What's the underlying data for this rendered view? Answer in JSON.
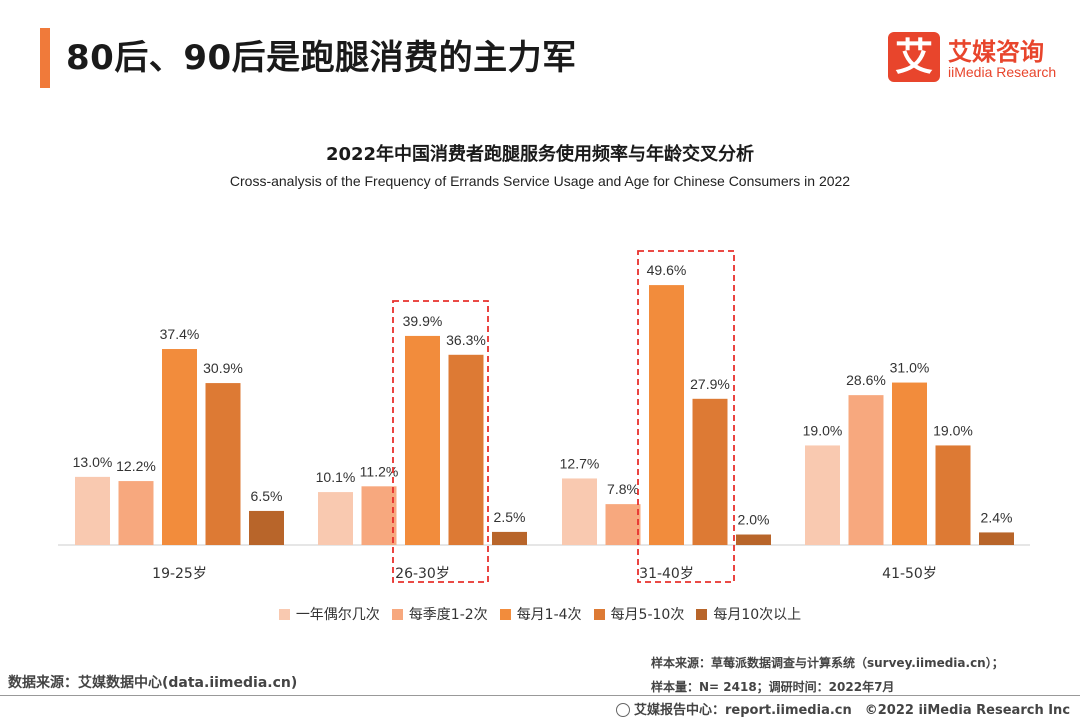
{
  "header": {
    "title": "80后、90后是跑腿消费的主力军"
  },
  "logo": {
    "mark": "艾",
    "name_cn": "艾媒咨询",
    "name_en": "iiMedia Research"
  },
  "chart_data": {
    "type": "bar",
    "title": "2022年中国消费者跑腿服务使用频率与年龄交叉分析",
    "subtitle": "Cross-analysis of the Frequency of Errands Service Usage and Age for Chinese Consumers in 2022",
    "categories": [
      "19-25岁",
      "26-30岁",
      "31-40岁",
      "41-50岁"
    ],
    "series": [
      {
        "name": "一年偶尔几次",
        "color": "#f9c9b0",
        "values": [
          13.0,
          10.1,
          12.7,
          19.0
        ]
      },
      {
        "name": "每季度1-2次",
        "color": "#f7a87e",
        "values": [
          12.2,
          11.2,
          7.8,
          28.6
        ]
      },
      {
        "name": "每月1-4次",
        "color": "#f28c3c",
        "values": [
          37.4,
          39.9,
          49.6,
          31.0
        ]
      },
      {
        "name": "每月5-10次",
        "color": "#dd7a34",
        "values": [
          30.9,
          36.3,
          27.9,
          19.0
        ]
      },
      {
        "name": "每月10次以上",
        "color": "#b8652a",
        "values": [
          6.5,
          2.5,
          2.0,
          2.4
        ]
      }
    ],
    "value_suffix": "%",
    "ylim": [
      0,
      55
    ],
    "legend_position": "bottom",
    "grid": false,
    "highlighted_categories": [
      "26-30岁",
      "31-40岁"
    ]
  },
  "footer": {
    "source_left": "数据来源：艾媒数据中心(data.iimedia.cn)",
    "sample_source": "样本来源：草莓派数据调查与计算系统（survey.iimedia.cn）；",
    "sample_size": "样本量：N= 2418；调研时间：2022年7月",
    "report": "艾媒报告中心：report.iimedia.cn　©2022  iiMedia Research  Inc"
  }
}
